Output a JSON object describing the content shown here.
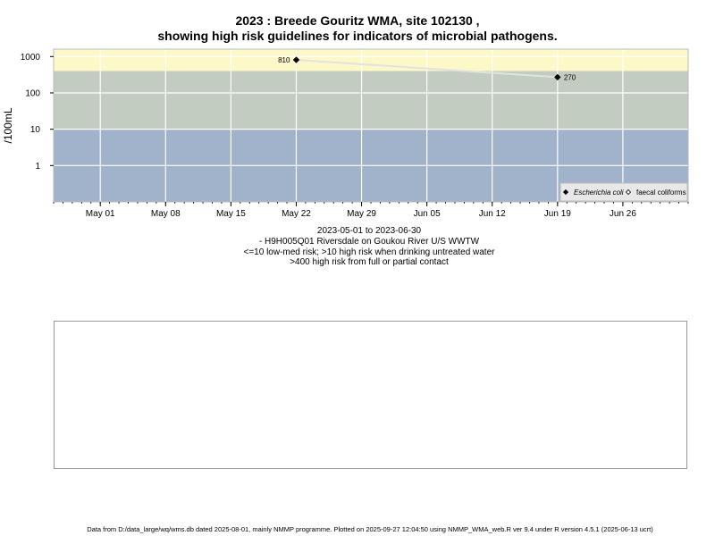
{
  "title_line1": "2023 : Breede Gouritz WMA, site 102130 ,",
  "title_line2": "showing high risk guidelines for indicators of microbial pathogens.",
  "chart_data": {
    "type": "scatter",
    "y_scale": "log",
    "ylabel": "/100mL",
    "y_ticks": [
      1,
      10,
      100,
      1000
    ],
    "y_tick_labels": [
      "1",
      "10",
      "100",
      "1000"
    ],
    "xlim": [
      "2023-04-26",
      "2023-07-03"
    ],
    "x_ticks": [
      "2023-05-01",
      "2023-05-08",
      "2023-05-15",
      "2023-05-22",
      "2023-05-29",
      "2023-06-05",
      "2023-06-12",
      "2023-06-19",
      "2023-06-26"
    ],
    "x_tick_labels": [
      "May 01",
      "May 08",
      "May 15",
      "May 22",
      "May 29",
      "Jun 05",
      "Jun 12",
      "Jun 19",
      "Jun 26"
    ],
    "risk_bands": [
      {
        "label": "<=10 low-med risk",
        "from": 0.1,
        "to": 10,
        "color": "#a1b2cb"
      },
      {
        "label": ">10 high risk when drinking untreated water",
        "from": 10,
        "to": 400,
        "color": "#c3ccc0"
      },
      {
        "label": ">400 high risk from full or partial contact",
        "from": 400,
        "to": 1600,
        "color": "#fdf8c8"
      }
    ],
    "series": [
      {
        "name": "Escherichia coli",
        "marker": "filled-diamond",
        "points": [
          {
            "x": "2023-05-22",
            "y": 810,
            "label": "810"
          },
          {
            "x": "2023-06-19",
            "y": 270,
            "label": "270"
          }
        ]
      },
      {
        "name": "faecal coliforms",
        "marker": "open-diamond",
        "points": []
      }
    ],
    "legend_position": "bottom-right",
    "grid": true
  },
  "captions": {
    "date_range": "2023-05-01 to 2023-06-30",
    "site": "- H9H005Q01 Riversdale on Goukou River U/S WWTW",
    "low_risk": "<=10 low-med risk; >10 high risk when drinking untreated water",
    "high_risk": ">400 high risk from full or partial contact"
  },
  "footer": "Data from D:/data_large/wq/wms.db dated 2025-08-01, mainly NMMP programme. Plotted on 2025-09-27 12:04:50 using NMMP_WMA_web.R ver 9.4 under R version 4.5.1 (2025-06-13 ucrt)"
}
